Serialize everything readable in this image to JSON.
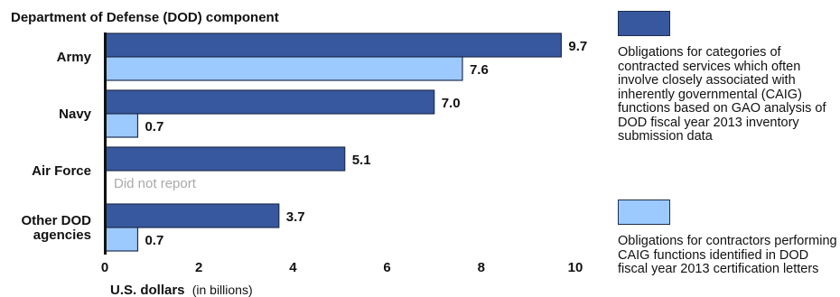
{
  "chart_data": {
    "type": "bar",
    "orientation": "horizontal",
    "title": "Department of Defense (DOD) component",
    "xlabel_bold": "U.S. dollars",
    "xlabel_rest": "(in billions)",
    "xlim": [
      0,
      10
    ],
    "xticks": [
      "0",
      "2",
      "4",
      "6",
      "8",
      "10"
    ],
    "categories": [
      [
        "Army"
      ],
      [
        "Navy"
      ],
      [
        "Air Force"
      ],
      [
        "Other DOD",
        "agencies"
      ]
    ],
    "series": [
      {
        "color": "#37589e",
        "values": [
          9.7,
          7.0,
          5.1,
          3.7
        ],
        "labels": [
          "9.7",
          "7.0",
          "5.1",
          "3.7"
        ]
      },
      {
        "color": "#9ccaff",
        "values": [
          7.6,
          0.7,
          null,
          0.7
        ],
        "labels": [
          "7.6",
          "0.7",
          "",
          "0.7"
        ]
      }
    ],
    "missing_note": "Did not report",
    "grid": false,
    "legend_position": "right",
    "legend": [
      "Obligations for categories of contracted services which often involve closely associated with inherently governmental (CAIG) functions based on GAO analysis of DOD fiscal year 2013 inventory submission data",
      "Obligations for contractors performing CAIG functions identified in DOD fiscal year 2013 certification letters"
    ]
  }
}
